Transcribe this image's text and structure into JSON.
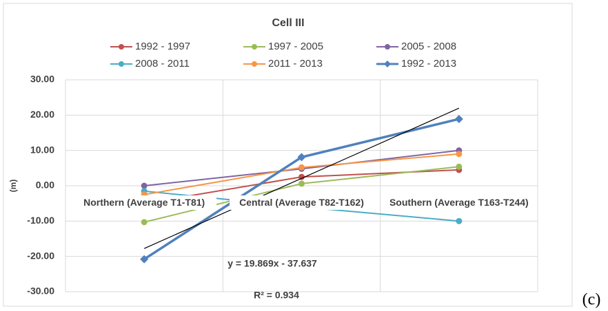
{
  "chart_data": {
    "type": "line",
    "title": "Cell III",
    "y_label": "(m)",
    "categories": [
      "Northern (Average T1-T81)",
      "Central (Average T82-T162)",
      "Southern (Average T163-T244)"
    ],
    "series": [
      {
        "name": "1992 - 1997",
        "color": "#c0504d",
        "values": [
          -5,
          2.5,
          4.5
        ]
      },
      {
        "name": "1997 - 2005",
        "color": "#9bbb59",
        "values": [
          -10.3,
          0.6,
          5.4
        ]
      },
      {
        "name": "2005 - 2008",
        "color": "#8064a2",
        "values": [
          0,
          4.8,
          10
        ]
      },
      {
        "name": "2008 - 2011",
        "color": "#4bacc6",
        "values": [
          -1.5,
          -6,
          -10
        ]
      },
      {
        "name": "2011 - 2013",
        "color": "#f79646",
        "values": [
          -2.5,
          5.2,
          9
        ]
      },
      {
        "name": "1992 - 2013",
        "color": "#4f81bd",
        "marker": "diamond",
        "values": [
          -20.8,
          8.1,
          18.9
        ]
      }
    ],
    "trendline": {
      "slope": 19.869,
      "intercept": -37.637,
      "color": "#000000",
      "equation": "y = 19.869x - 37.637",
      "r_squared": "R² = 0.934"
    },
    "ylim": [
      -30,
      30
    ],
    "yticks": [
      {
        "value": -30,
        "label": "-30.00"
      },
      {
        "value": -20,
        "label": "-20.00"
      },
      {
        "value": -10,
        "label": "-10.00"
      },
      {
        "value": 0,
        "label": "0.00"
      },
      {
        "value": 10,
        "label": "10.00"
      },
      {
        "value": 20,
        "label": "20.00"
      },
      {
        "value": 30,
        "label": "30.00"
      }
    ],
    "grid": true,
    "panel_label": "(c)"
  }
}
